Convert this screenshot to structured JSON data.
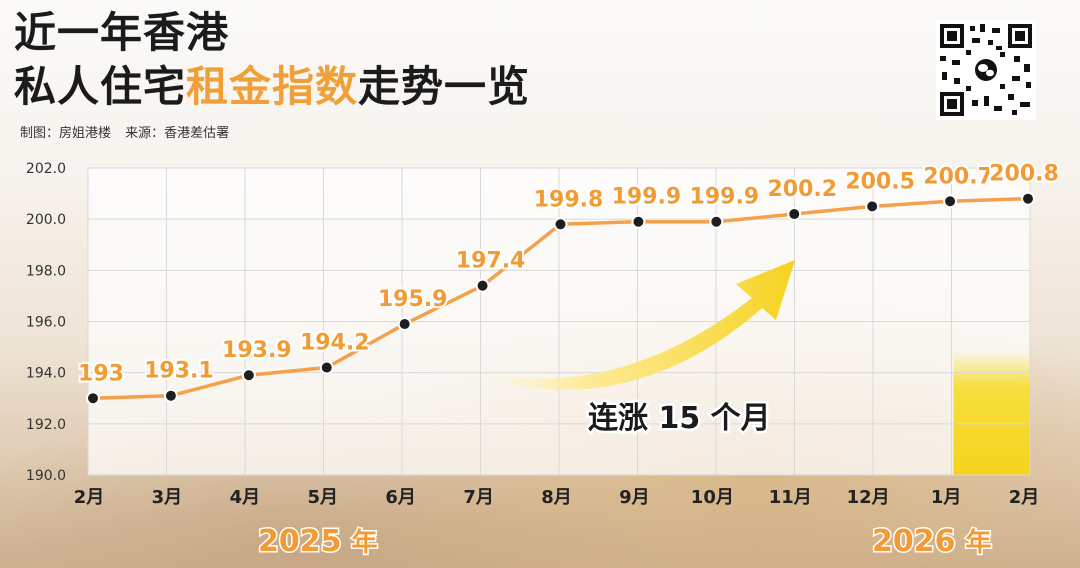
{
  "header": {
    "title_line1": "近一年香港",
    "title_line2_pre": "私人住宅",
    "title_line2_highlight": "租金指数",
    "title_line2_post": "走势一览",
    "credit_maker": "制图：房姐港楼",
    "credit_source": "来源：香港差估署"
  },
  "colors": {
    "accent": "#f29b34",
    "highlight_bar": "#f7dc2a",
    "title": "#1b1b1b"
  },
  "icons": {
    "qr": "qr-code-icon",
    "arrow": "trend-arrow-icon"
  },
  "annotations": {
    "streak": "连涨 15 个月",
    "year_2025": "2025",
    "year_2026": "2026",
    "year_suffix": "年"
  },
  "chart_data": {
    "type": "line",
    "title": "近一年香港私人住宅租金指数走势一览",
    "categories": [
      "2月",
      "3月",
      "4月",
      "5月",
      "6月",
      "7月",
      "8月",
      "9月",
      "10月",
      "11月",
      "12月",
      "1月",
      "2月"
    ],
    "values": [
      193.0,
      193.1,
      193.9,
      194.2,
      195.9,
      197.4,
      199.8,
      199.9,
      199.9,
      200.2,
      200.5,
      200.7,
      200.8
    ],
    "value_labels": [
      "193",
      "193.1",
      "193.9",
      "194.2",
      "195.9",
      "197.4",
      "199.8",
      "199.9",
      "199.9",
      "200.2",
      "200.5",
      "200.7",
      "200.8"
    ],
    "yticks": [
      "190.0",
      "192.0",
      "194.0",
      "196.0",
      "198.0",
      "200.0",
      "202.0"
    ],
    "ylim": [
      190,
      202
    ],
    "highlight_index": 11,
    "grid": true,
    "legend": "none"
  }
}
